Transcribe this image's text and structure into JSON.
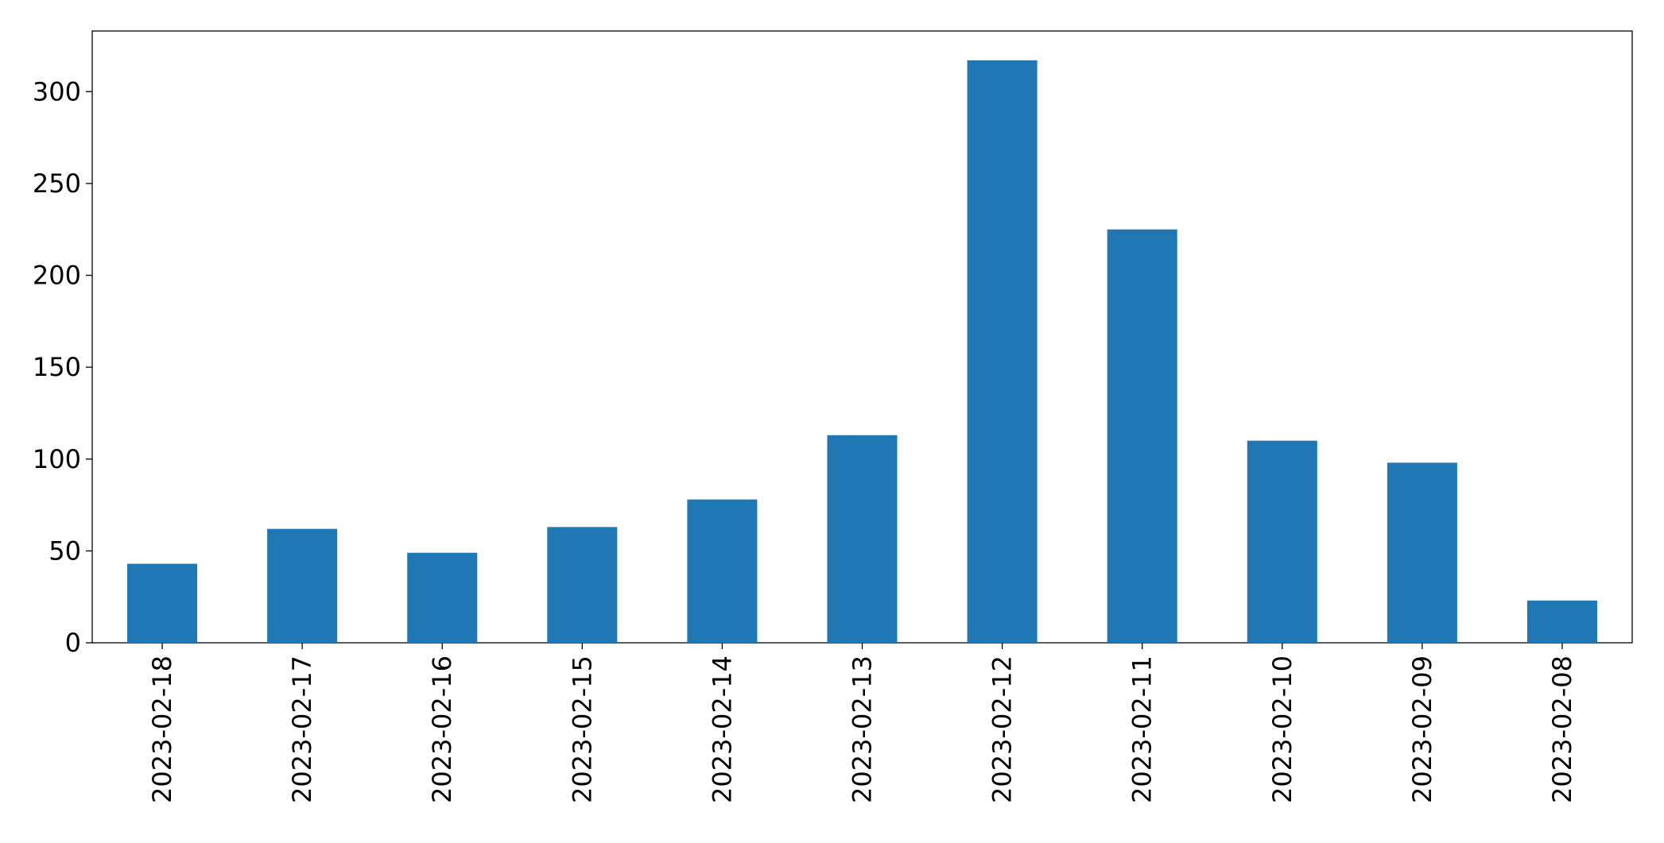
{
  "chart_data": {
    "type": "bar",
    "categories": [
      "2023-02-18",
      "2023-02-17",
      "2023-02-16",
      "2023-02-15",
      "2023-02-14",
      "2023-02-13",
      "2023-02-12",
      "2023-02-11",
      "2023-02-10",
      "2023-02-09",
      "2023-02-08"
    ],
    "values": [
      43,
      62,
      49,
      63,
      78,
      113,
      317,
      225,
      110,
      98,
      23
    ],
    "color": "#1f77b4",
    "ylim": [
      0,
      333
    ],
    "yticks": [
      0,
      50,
      100,
      150,
      200,
      250,
      300
    ],
    "grid": false
  }
}
